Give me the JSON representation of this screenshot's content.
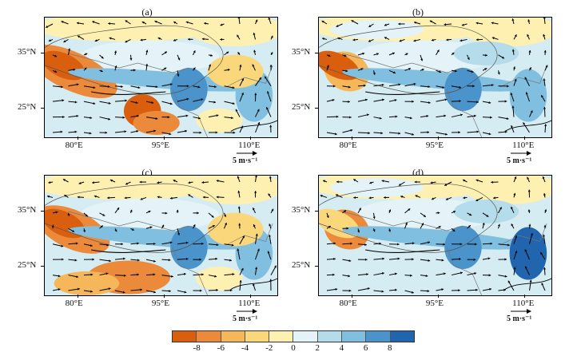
{
  "panels": [
    {
      "label": "(a)"
    },
    {
      "label": "(b)"
    },
    {
      "label": "(c)"
    },
    {
      "label": "(d)"
    }
  ],
  "axes": {
    "lat_ticks": [
      "35°N",
      "25°N"
    ],
    "lon_ticks": [
      "80°E",
      "95°E",
      "110°E"
    ]
  },
  "reference_vector": {
    "label": "5 m·s⁻¹"
  },
  "colorbar": {
    "labels": [
      "-8",
      "-6",
      "-4",
      "-2",
      "0",
      "2",
      "4",
      "6",
      "8"
    ],
    "colors": [
      "#d95f0e",
      "#ec8a3c",
      "#f6b75a",
      "#fad77a",
      "#fdf0b0",
      "#e3f3f8",
      "#b5dcea",
      "#80bfdf",
      "#4a93cb",
      "#2065ae"
    ]
  }
}
